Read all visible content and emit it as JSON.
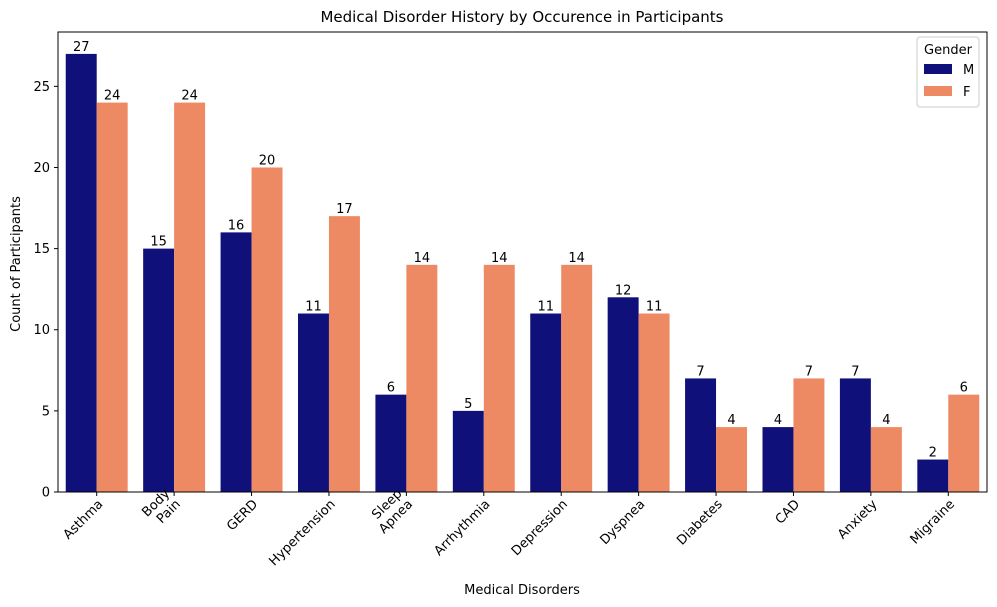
{
  "chart_data": {
    "type": "bar",
    "title": "Medical Disorder History by Occurence in Participants",
    "xlabel": "Medical Disorders",
    "ylabel": "Count of Participants",
    "categories": [
      [
        "Asthma"
      ],
      [
        "Body",
        "Pain"
      ],
      [
        "GERD"
      ],
      [
        "Hypertension"
      ],
      [
        "Sleep",
        "Apnea"
      ],
      [
        "Arrhythmia"
      ],
      [
        "Depression"
      ],
      [
        "Dyspnea"
      ],
      [
        "Diabetes"
      ],
      [
        "CAD"
      ],
      [
        "Anxiety"
      ],
      [
        "Migraine"
      ]
    ],
    "series": [
      {
        "name": "M",
        "color": "#10107a",
        "values": [
          27,
          15,
          16,
          11,
          6,
          5,
          11,
          12,
          7,
          4,
          7,
          2
        ]
      },
      {
        "name": "F",
        "color": "#ee8a63",
        "values": [
          24,
          24,
          20,
          17,
          14,
          14,
          14,
          11,
          4,
          7,
          4,
          6
        ]
      }
    ],
    "ylim": [
      0,
      28.35
    ],
    "yticks": [
      0,
      5,
      10,
      15,
      20,
      25
    ],
    "grid": false,
    "legend": {
      "title": "Gender",
      "placement": "top-right"
    }
  }
}
